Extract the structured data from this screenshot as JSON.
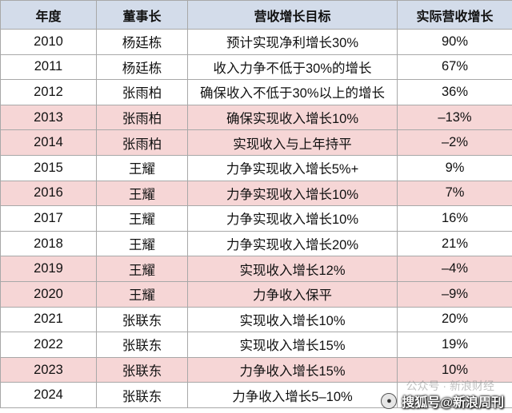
{
  "table": {
    "headers": [
      "年度",
      "董事长",
      "营收增长目标",
      "实际营收增长"
    ],
    "rows": [
      {
        "year": "2010",
        "chairman": "杨廷栋",
        "target": "预计实现净利增长30%",
        "actual": "90%",
        "highlight": false
      },
      {
        "year": "2011",
        "chairman": "杨廷栋",
        "target": "收入力争不低于30%的增长",
        "actual": "67%",
        "highlight": false
      },
      {
        "year": "2012",
        "chairman": "张雨柏",
        "target": "确保收入不低于30%以上的增长",
        "actual": "36%",
        "highlight": false
      },
      {
        "year": "2013",
        "chairman": "张雨柏",
        "target": "确保实现收入增长10%",
        "actual": "–13%",
        "highlight": true
      },
      {
        "year": "2014",
        "chairman": "张雨柏",
        "target": "实现收入与上年持平",
        "actual": "–2%",
        "highlight": true
      },
      {
        "year": "2015",
        "chairman": "王耀",
        "target": "力争实现收入增长5%+",
        "actual": "9%",
        "highlight": false
      },
      {
        "year": "2016",
        "chairman": "王耀",
        "target": "力争实现收入增长10%",
        "actual": "7%",
        "highlight": true
      },
      {
        "year": "2017",
        "chairman": "王耀",
        "target": "力争实现收入增长10%",
        "actual": "16%",
        "highlight": false
      },
      {
        "year": "2018",
        "chairman": "王耀",
        "target": "力争实现收入增长20%",
        "actual": "21%",
        "highlight": false
      },
      {
        "year": "2019",
        "chairman": "王耀",
        "target": "实现收入增长12%",
        "actual": "–4%",
        "highlight": true
      },
      {
        "year": "2020",
        "chairman": "王耀",
        "target": "力争收入保平",
        "actual": "–9%",
        "highlight": true
      },
      {
        "year": "2021",
        "chairman": "张联东",
        "target": "实现收入增长10%",
        "actual": "20%",
        "highlight": false
      },
      {
        "year": "2022",
        "chairman": "张联东",
        "target": "实现收入增长15%",
        "actual": "19%",
        "highlight": false
      },
      {
        "year": "2023",
        "chairman": "张联东",
        "target": "力争收入增长15%",
        "actual": "10%",
        "highlight": true
      },
      {
        "year": "2024",
        "chairman": "张联东",
        "target": "力争收入增长5–10%",
        "actual": "",
        "highlight": false
      }
    ]
  },
  "watermark": {
    "text": "搜狐号@新浪周刊",
    "ghost_text": "公众号 · 新浪财经",
    "icon": "logo-badge-icon"
  },
  "colors": {
    "header_bg": "#d3dcea",
    "highlight_bg": "#f6d6d6",
    "border": "#a8a8a8"
  }
}
